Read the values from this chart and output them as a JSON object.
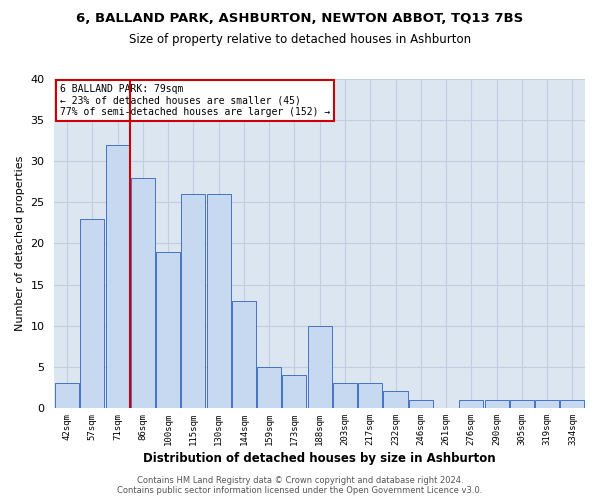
{
  "title": "6, BALLAND PARK, ASHBURTON, NEWTON ABBOT, TQ13 7BS",
  "subtitle": "Size of property relative to detached houses in Ashburton",
  "xlabel": "Distribution of detached houses by size in Ashburton",
  "ylabel": "Number of detached properties",
  "categories": [
    "42sqm",
    "57sqm",
    "71sqm",
    "86sqm",
    "100sqm",
    "115sqm",
    "130sqm",
    "144sqm",
    "159sqm",
    "173sqm",
    "188sqm",
    "203sqm",
    "217sqm",
    "232sqm",
    "246sqm",
    "261sqm",
    "276sqm",
    "290sqm",
    "305sqm",
    "319sqm",
    "334sqm"
  ],
  "values": [
    3,
    23,
    32,
    28,
    19,
    26,
    26,
    13,
    5,
    4,
    10,
    3,
    3,
    2,
    1,
    0,
    1,
    1,
    1,
    1,
    1
  ],
  "bar_color": "#c6d9f0",
  "bar_edge_color": "#4472c4",
  "red_line_x": 2.5,
  "annotation_title": "6 BALLAND PARK: 79sqm",
  "annotation_line1": "← 23% of detached houses are smaller (45)",
  "annotation_line2": "77% of semi-detached houses are larger (152) →",
  "ylim": [
    0,
    40
  ],
  "yticks": [
    0,
    5,
    10,
    15,
    20,
    25,
    30,
    35,
    40
  ],
  "footer_line1": "Contains HM Land Registry data © Crown copyright and database right 2024.",
  "footer_line2": "Contains public sector information licensed under the Open Government Licence v3.0.",
  "axes_bg": "#dce6f1",
  "grid_color": "#c0cfe0"
}
